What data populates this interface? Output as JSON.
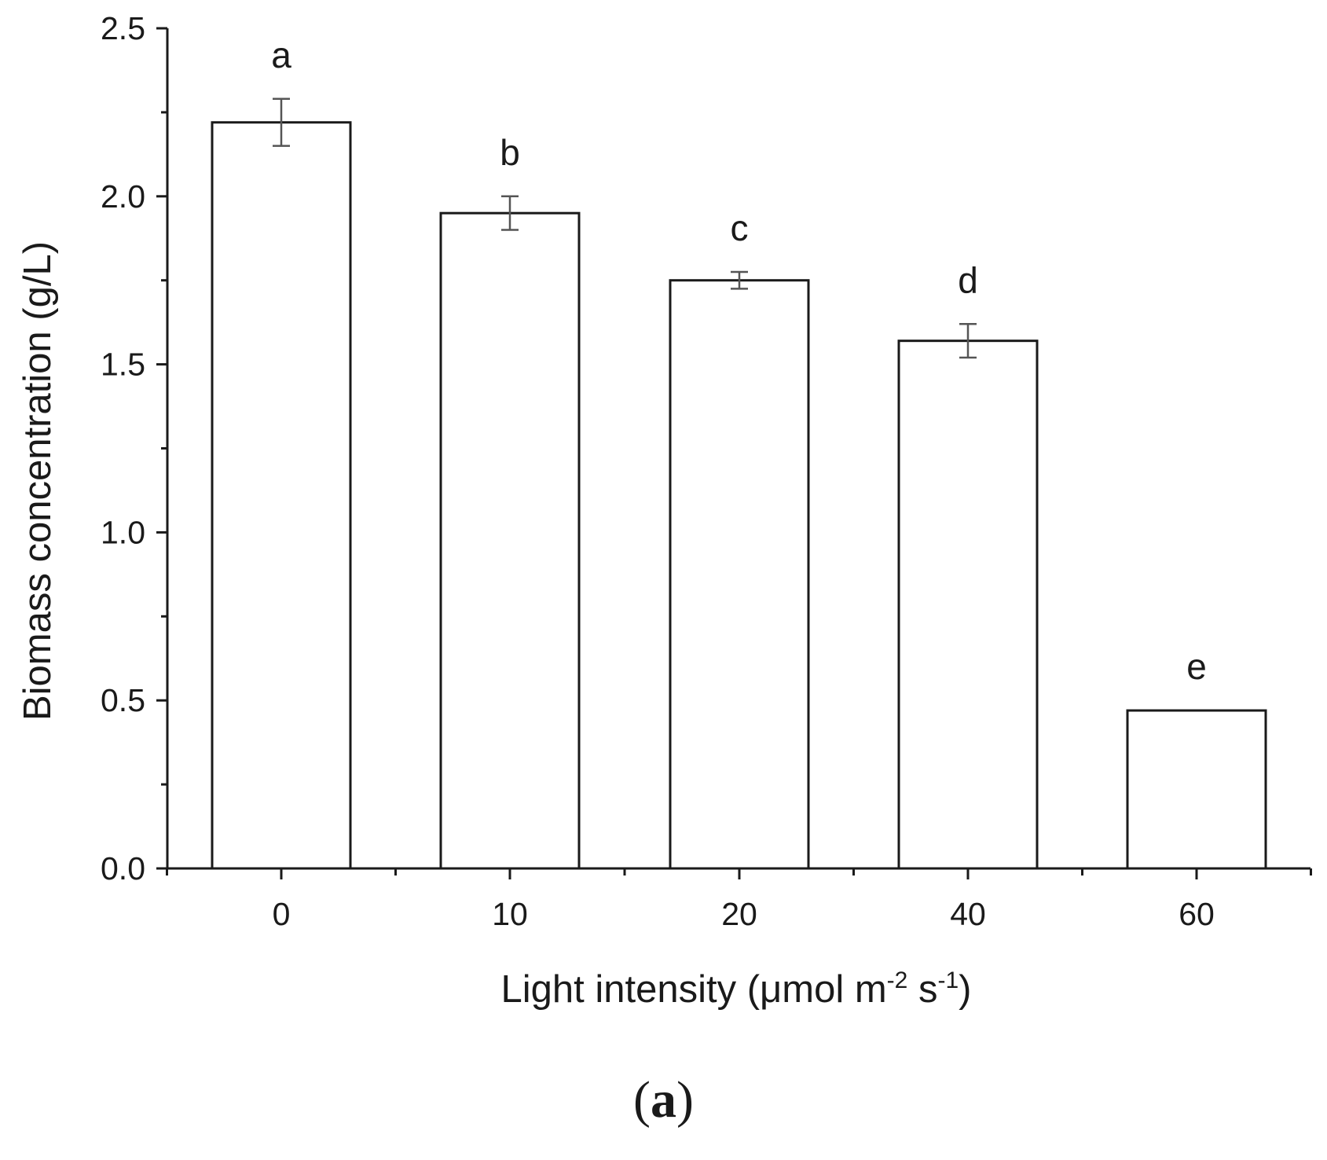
{
  "chart_data": {
    "type": "bar",
    "categories": [
      "0",
      "10",
      "20",
      "40",
      "60"
    ],
    "values": [
      2.22,
      1.95,
      1.75,
      1.57,
      0.47
    ],
    "errors": [
      0.07,
      0.05,
      0.025,
      0.05,
      0.0
    ],
    "significance_letters": [
      "a",
      "b",
      "c",
      "d",
      "e"
    ],
    "title": "",
    "xlabel": {
      "main": "Light intensity (μmol m",
      "sup1": "-2",
      "mid": " s",
      "sup2": "-1",
      "end": ")"
    },
    "ylabel": "Biomass concentration (g/L)",
    "ylim": [
      0,
      2.5
    ],
    "yticks": [
      "0.0",
      "0.5",
      "1.0",
      "1.5",
      "2.0",
      "2.5"
    ],
    "grid": false,
    "legend": "none",
    "bar_fill": "#ffffff",
    "bar_stroke": "#1a1a1a",
    "error_bar_color": "#555555"
  },
  "panel": {
    "open": "(",
    "letter": "a",
    "close": ")"
  }
}
